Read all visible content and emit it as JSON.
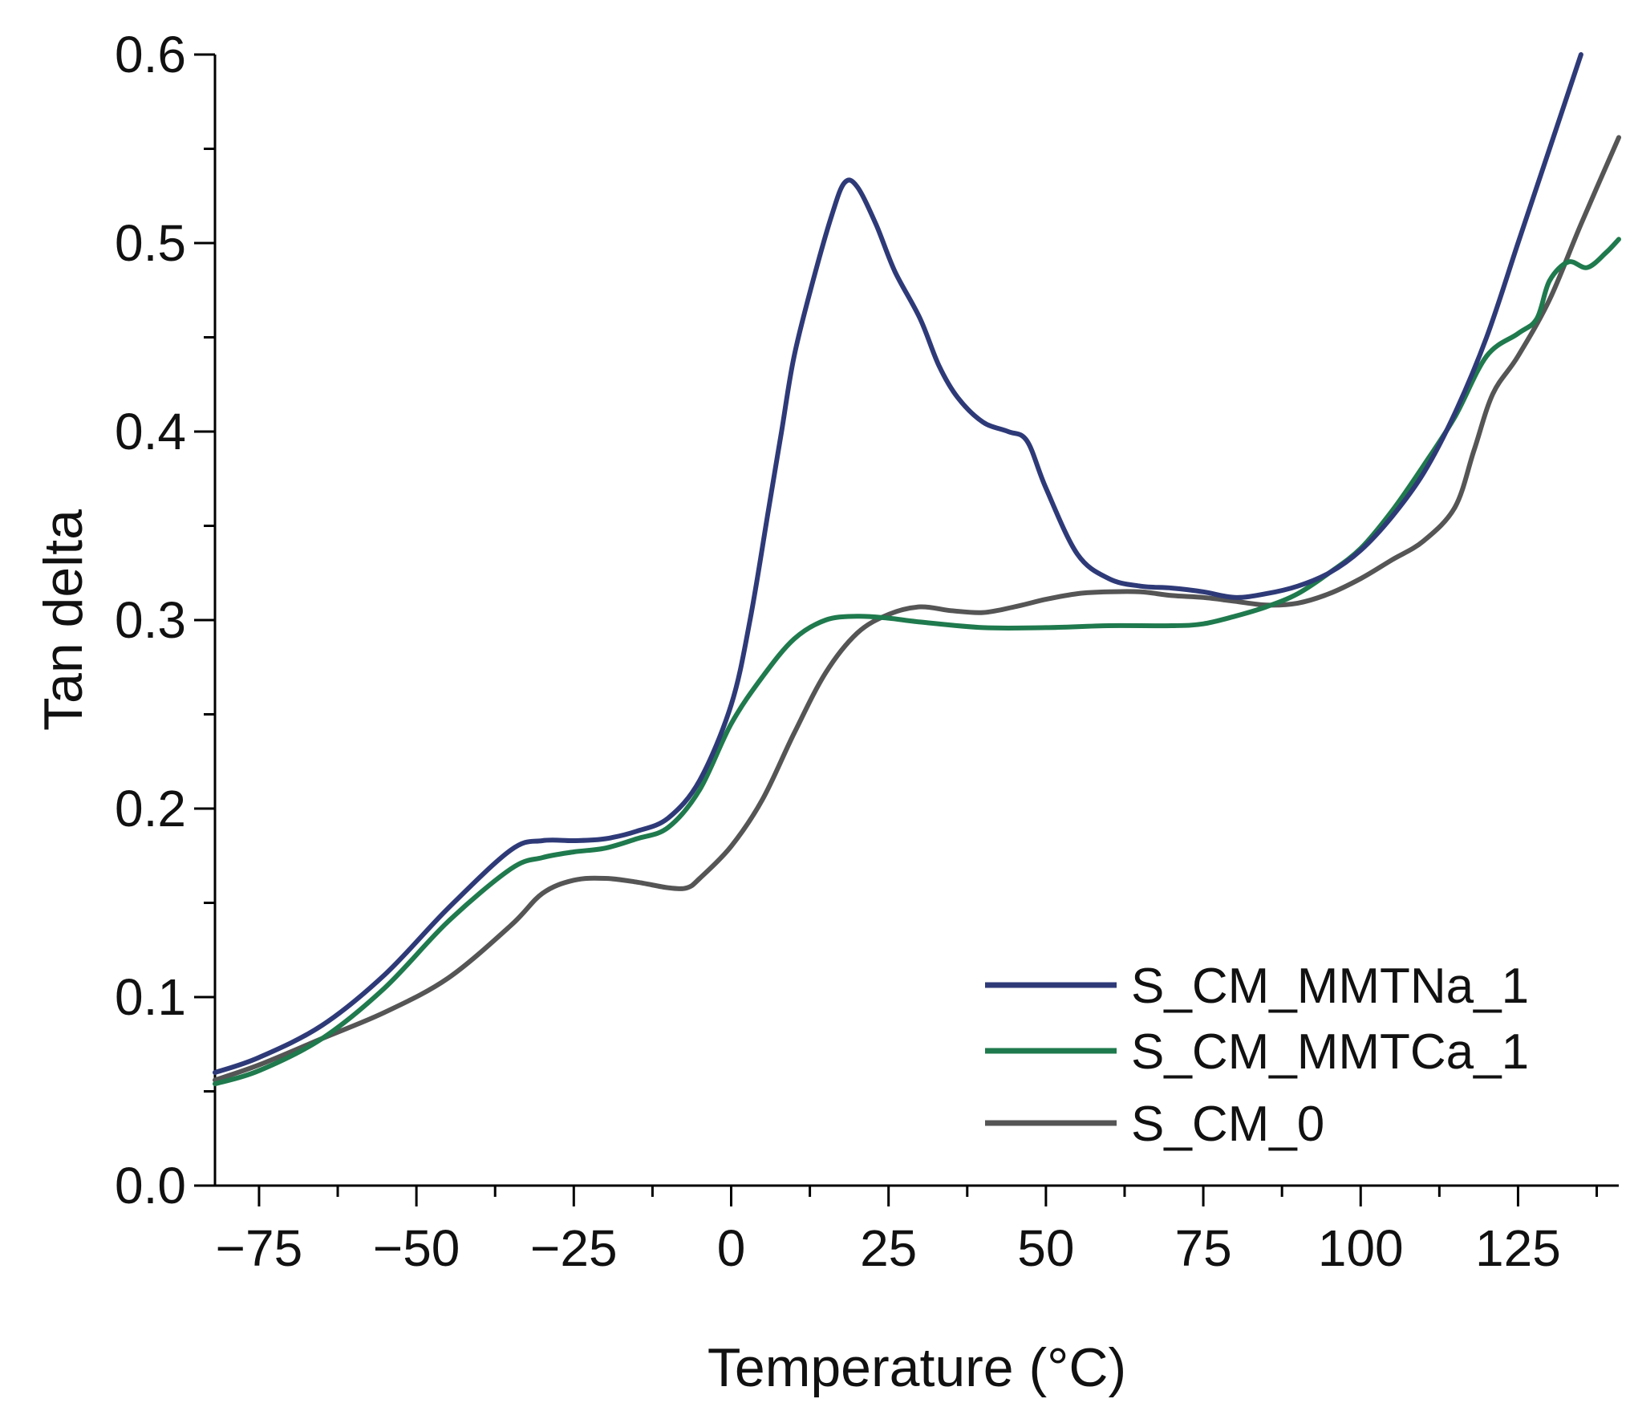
{
  "chart_data": {
    "type": "line",
    "title": "",
    "xlabel": "Temperature (°C)",
    "ylabel": "Tan delta",
    "xlim": [
      -82,
      141
    ],
    "ylim": [
      0.0,
      0.6
    ],
    "grid": false,
    "legend_position": "bottom-right",
    "x_ticks": [
      -75,
      -50,
      -25,
      0,
      25,
      50,
      75,
      100,
      125
    ],
    "x_tick_labels": [
      "−75",
      "−50",
      "−25",
      "0",
      "25",
      "50",
      "75",
      "100",
      "125"
    ],
    "y_ticks": [
      0.0,
      0.1,
      0.2,
      0.3,
      0.4,
      0.5,
      0.6
    ],
    "y_tick_labels": [
      "0.0",
      "0.1",
      "0.2",
      "0.3",
      "0.4",
      "0.5",
      "0.6"
    ],
    "series": [
      {
        "name": "S_CM_MMTNa_1",
        "color": "#2e3a78",
        "points": [
          [
            -82,
            0.06
          ],
          [
            -75,
            0.068
          ],
          [
            -65,
            0.085
          ],
          [
            -55,
            0.112
          ],
          [
            -45,
            0.147
          ],
          [
            -35,
            0.178
          ],
          [
            -30,
            0.183
          ],
          [
            -25,
            0.183
          ],
          [
            -20,
            0.184
          ],
          [
            -15,
            0.188
          ],
          [
            -10,
            0.195
          ],
          [
            -5,
            0.215
          ],
          [
            0,
            0.255
          ],
          [
            3,
            0.3
          ],
          [
            6,
            0.36
          ],
          [
            8,
            0.4
          ],
          [
            10,
            0.44
          ],
          [
            13,
            0.48
          ],
          [
            16,
            0.515
          ],
          [
            18,
            0.532
          ],
          [
            20,
            0.53
          ],
          [
            23,
            0.51
          ],
          [
            26,
            0.485
          ],
          [
            30,
            0.46
          ],
          [
            33,
            0.435
          ],
          [
            36,
            0.418
          ],
          [
            40,
            0.405
          ],
          [
            44,
            0.4
          ],
          [
            47,
            0.395
          ],
          [
            50,
            0.37
          ],
          [
            55,
            0.335
          ],
          [
            60,
            0.322
          ],
          [
            65,
            0.318
          ],
          [
            70,
            0.317
          ],
          [
            75,
            0.315
          ],
          [
            80,
            0.312
          ],
          [
            85,
            0.314
          ],
          [
            90,
            0.318
          ],
          [
            95,
            0.325
          ],
          [
            100,
            0.337
          ],
          [
            105,
            0.355
          ],
          [
            110,
            0.378
          ],
          [
            115,
            0.41
          ],
          [
            120,
            0.45
          ],
          [
            125,
            0.5
          ],
          [
            130,
            0.55
          ],
          [
            135,
            0.6
          ]
        ]
      },
      {
        "name": "S_CM_MMTCa_1",
        "color": "#1f7a4d",
        "points": [
          [
            -82,
            0.054
          ],
          [
            -75,
            0.061
          ],
          [
            -65,
            0.078
          ],
          [
            -55,
            0.105
          ],
          [
            -45,
            0.14
          ],
          [
            -35,
            0.168
          ],
          [
            -30,
            0.174
          ],
          [
            -25,
            0.177
          ],
          [
            -20,
            0.179
          ],
          [
            -15,
            0.184
          ],
          [
            -10,
            0.19
          ],
          [
            -5,
            0.21
          ],
          [
            0,
            0.245
          ],
          [
            5,
            0.27
          ],
          [
            10,
            0.29
          ],
          [
            15,
            0.3
          ],
          [
            20,
            0.302
          ],
          [
            25,
            0.301
          ],
          [
            30,
            0.299
          ],
          [
            40,
            0.296
          ],
          [
            50,
            0.296
          ],
          [
            60,
            0.297
          ],
          [
            70,
            0.297
          ],
          [
            75,
            0.298
          ],
          [
            80,
            0.302
          ],
          [
            85,
            0.307
          ],
          [
            90,
            0.314
          ],
          [
            95,
            0.325
          ],
          [
            100,
            0.338
          ],
          [
            105,
            0.358
          ],
          [
            110,
            0.382
          ],
          [
            115,
            0.408
          ],
          [
            120,
            0.44
          ],
          [
            125,
            0.452
          ],
          [
            128,
            0.46
          ],
          [
            130,
            0.48
          ],
          [
            133,
            0.49
          ],
          [
            136,
            0.487
          ],
          [
            139,
            0.495
          ],
          [
            141,
            0.502
          ]
        ]
      },
      {
        "name": "S_CM_0",
        "color": "#555555",
        "points": [
          [
            -82,
            0.056
          ],
          [
            -75,
            0.064
          ],
          [
            -65,
            0.078
          ],
          [
            -55,
            0.092
          ],
          [
            -45,
            0.11
          ],
          [
            -35,
            0.138
          ],
          [
            -30,
            0.155
          ],
          [
            -25,
            0.162
          ],
          [
            -20,
            0.163
          ],
          [
            -15,
            0.161
          ],
          [
            -10,
            0.158
          ],
          [
            -7,
            0.158
          ],
          [
            -5,
            0.163
          ],
          [
            0,
            0.18
          ],
          [
            5,
            0.205
          ],
          [
            10,
            0.24
          ],
          [
            15,
            0.272
          ],
          [
            20,
            0.293
          ],
          [
            25,
            0.303
          ],
          [
            30,
            0.307
          ],
          [
            35,
            0.305
          ],
          [
            40,
            0.304
          ],
          [
            45,
            0.307
          ],
          [
            50,
            0.311
          ],
          [
            55,
            0.314
          ],
          [
            60,
            0.315
          ],
          [
            65,
            0.315
          ],
          [
            70,
            0.313
          ],
          [
            75,
            0.312
          ],
          [
            80,
            0.31
          ],
          [
            85,
            0.308
          ],
          [
            90,
            0.309
          ],
          [
            95,
            0.314
          ],
          [
            100,
            0.322
          ],
          [
            105,
            0.332
          ],
          [
            110,
            0.342
          ],
          [
            115,
            0.36
          ],
          [
            118,
            0.39
          ],
          [
            121,
            0.42
          ],
          [
            125,
            0.44
          ],
          [
            130,
            0.47
          ],
          [
            135,
            0.51
          ],
          [
            141,
            0.556
          ]
        ]
      }
    ]
  }
}
